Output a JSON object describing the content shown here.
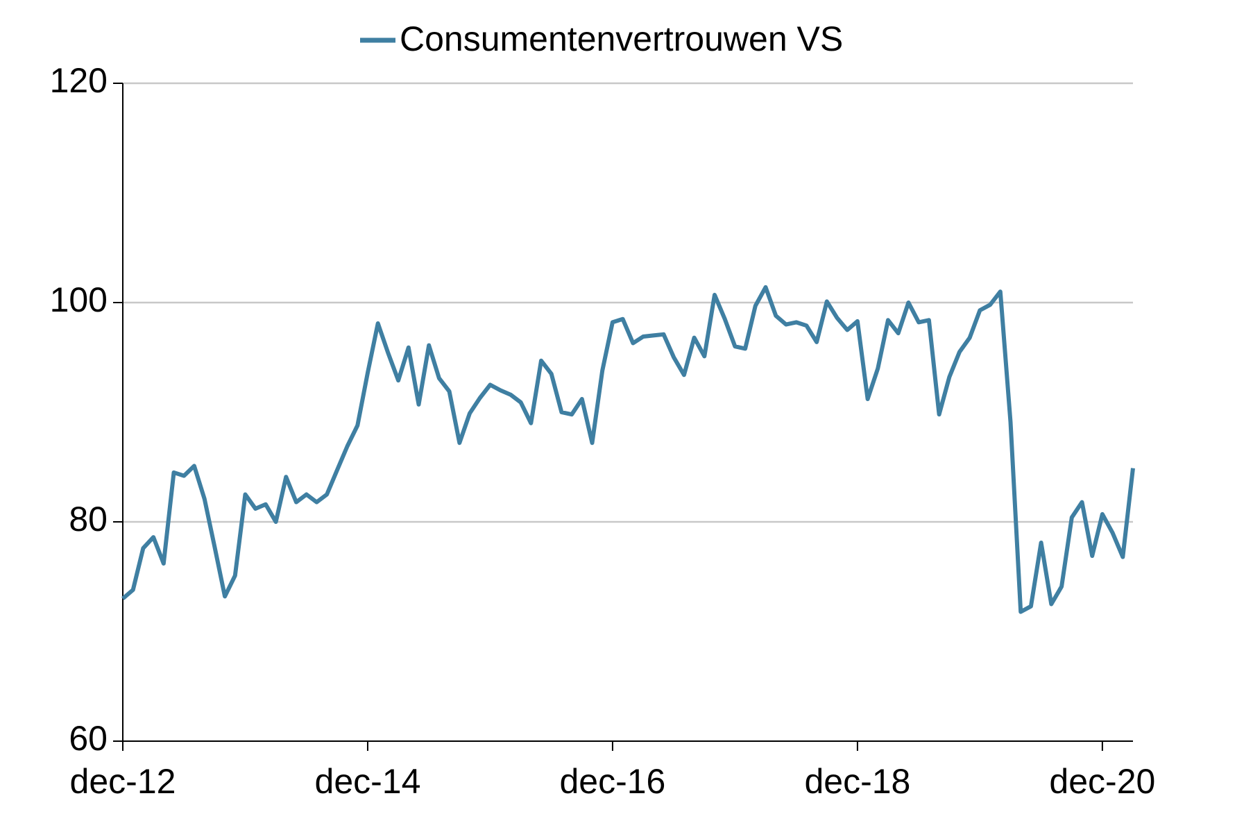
{
  "chart_data": {
    "type": "line",
    "categories": [
      "dec-12",
      null,
      null,
      null,
      null,
      null,
      null,
      null,
      null,
      null,
      null,
      null,
      null,
      null,
      null,
      null,
      null,
      null,
      null,
      null,
      null,
      null,
      null,
      null,
      "dec-14",
      null,
      null,
      null,
      null,
      null,
      null,
      null,
      null,
      null,
      null,
      null,
      null,
      null,
      null,
      null,
      null,
      null,
      null,
      null,
      null,
      null,
      null,
      null,
      "dec-16",
      null,
      null,
      null,
      null,
      null,
      null,
      null,
      null,
      null,
      null,
      null,
      null,
      null,
      null,
      null,
      null,
      null,
      null,
      null,
      null,
      null,
      null,
      null,
      "dec-18",
      null,
      null,
      null,
      null,
      null,
      null,
      null,
      null,
      null,
      null,
      null,
      null,
      null,
      null,
      null,
      null,
      null,
      null,
      null,
      null,
      null,
      null,
      null,
      "dec-20",
      null,
      null,
      null
    ],
    "series": [
      {
        "name": "Consumentenvertrouwen VS",
        "color": "#3f7fa2",
        "values": [
          73.0,
          73.8,
          77.6,
          78.6,
          76.2,
          84.5,
          84.2,
          85.1,
          82.1,
          77.7,
          73.2,
          75.1,
          82.5,
          81.2,
          81.6,
          80.0,
          84.1,
          81.8,
          82.5,
          81.8,
          82.5,
          84.7,
          86.9,
          88.8,
          93.6,
          98.1,
          95.4,
          92.9,
          95.9,
          90.7,
          96.1,
          93.1,
          91.9,
          87.2,
          89.9,
          91.3,
          92.5,
          92.0,
          91.6,
          90.9,
          89.0,
          94.7,
          93.5,
          90.0,
          89.8,
          91.2,
          87.2,
          93.8,
          98.2,
          98.5,
          96.3,
          96.9,
          97.0,
          97.1,
          95.0,
          93.4,
          96.8,
          95.1,
          100.7,
          98.5,
          96.0,
          95.8,
          99.7,
          101.4,
          98.8,
          98.0,
          98.2,
          97.9,
          96.4,
          100.1,
          98.6,
          97.5,
          98.3,
          91.2,
          94.0,
          98.4,
          97.2,
          100.0,
          98.2,
          98.4,
          89.8,
          93.2,
          95.5,
          96.8,
          99.3,
          99.8,
          101.0,
          89.1,
          71.8,
          72.3,
          78.1,
          72.5,
          74.1,
          80.4,
          81.8,
          76.9,
          80.7,
          79.0,
          76.8,
          84.9
        ]
      }
    ],
    "ylim": [
      60,
      120
    ],
    "yticks": [
      60,
      80,
      100,
      120
    ],
    "grid": true,
    "legend": "top"
  }
}
